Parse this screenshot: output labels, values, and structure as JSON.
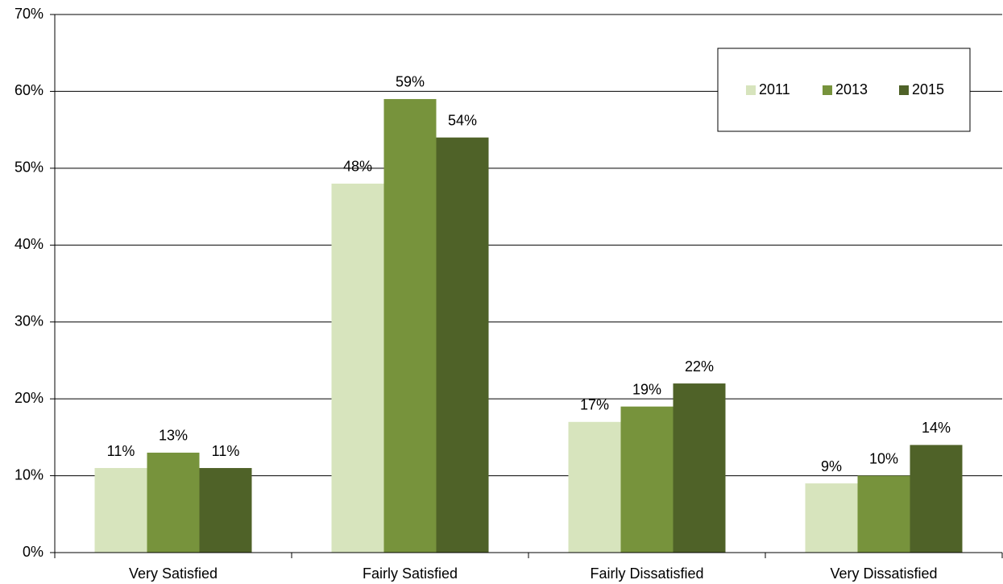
{
  "chart_data": {
    "type": "bar",
    "categories": [
      "Very Satisfied",
      "Fairly Satisfied",
      "Fairly Dissatisfied",
      "Very Dissatisfied"
    ],
    "series": [
      {
        "name": "2011",
        "color": "#d7e4bd",
        "values": [
          11,
          48,
          17,
          9
        ],
        "value_labels": [
          "11%",
          "48%",
          "17%",
          "9%"
        ]
      },
      {
        "name": "2013",
        "color": "#77933c",
        "values": [
          13,
          59,
          19,
          10
        ],
        "value_labels": [
          "13%",
          "59%",
          "19%",
          "10%"
        ]
      },
      {
        "name": "2015",
        "color": "#4f6228",
        "values": [
          11,
          54,
          22,
          14
        ],
        "value_labels": [
          "11%",
          "54%",
          "22%",
          "14%"
        ]
      }
    ],
    "ylim": [
      0,
      70
    ],
    "yticks": [
      {
        "value": 0,
        "label": "0%"
      },
      {
        "value": 10,
        "label": "10%"
      },
      {
        "value": 20,
        "label": "20%"
      },
      {
        "value": 30,
        "label": "30%"
      },
      {
        "value": 40,
        "label": "40%"
      },
      {
        "value": 50,
        "label": "50%"
      },
      {
        "value": 60,
        "label": "60%"
      },
      {
        "value": 70,
        "label": "70%"
      }
    ],
    "grid": true,
    "legend": "top-right"
  }
}
